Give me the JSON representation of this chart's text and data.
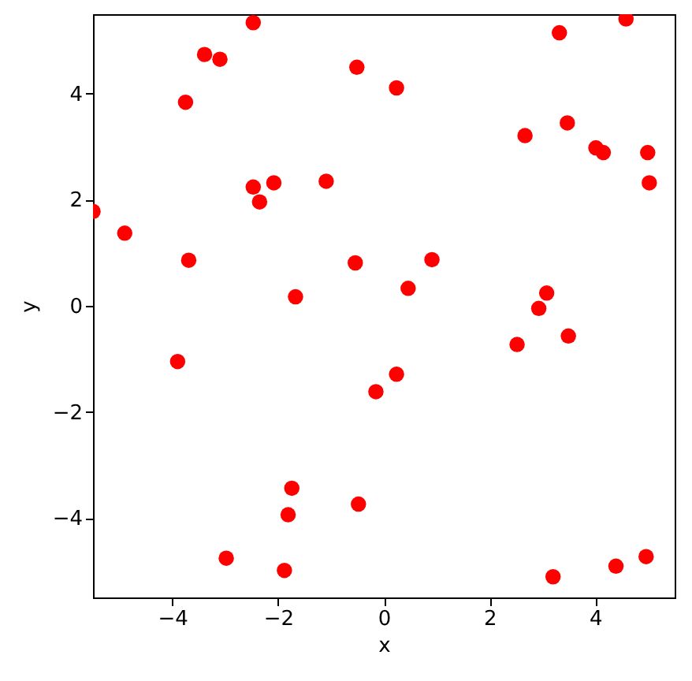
{
  "chart_data": {
    "type": "scatter",
    "xlabel": "x",
    "ylabel": "y",
    "color": "#ff0000",
    "marker": "circle",
    "x": [
      -5.5,
      -4.9,
      -3.69,
      -3.75,
      -3.39,
      -3.1,
      -2.47,
      -2.47,
      -2.35,
      -2.08,
      -1.09,
      -1.67,
      -0.51,
      -0.54,
      0.24,
      3.32,
      4.58,
      2.67,
      3.47,
      4.01,
      4.15,
      4.99,
      5.02,
      0.91,
      0.46,
      3.08,
      2.93,
      -3.9,
      -0.15,
      0.24,
      -1.74,
      -1.81,
      -0.48,
      -2.98,
      -1.88,
      2.52,
      3.49,
      3.2,
      4.39,
      4.96
    ],
    "values": [
      1.78,
      1.37,
      0.86,
      3.84,
      4.74,
      4.65,
      5.34,
      2.24,
      1.96,
      2.32,
      2.35,
      0.17,
      4.5,
      0.81,
      4.11,
      5.15,
      5.41,
      3.21,
      3.45,
      2.98,
      2.89,
      2.89,
      2.32,
      0.87,
      0.33,
      0.24,
      -0.05,
      -1.05,
      -1.62,
      -1.29,
      -3.44,
      -3.94,
      -3.74,
      -4.76,
      -4.99,
      -0.73,
      -0.57,
      -5.11,
      -4.91,
      -4.73
    ],
    "xlim": [
      -5.5,
      5.5
    ],
    "ylim": [
      -5.5,
      5.5
    ],
    "xticks": [
      -4,
      -2,
      0,
      2,
      4
    ],
    "yticks": [
      -4,
      -2,
      0,
      2,
      4
    ]
  }
}
